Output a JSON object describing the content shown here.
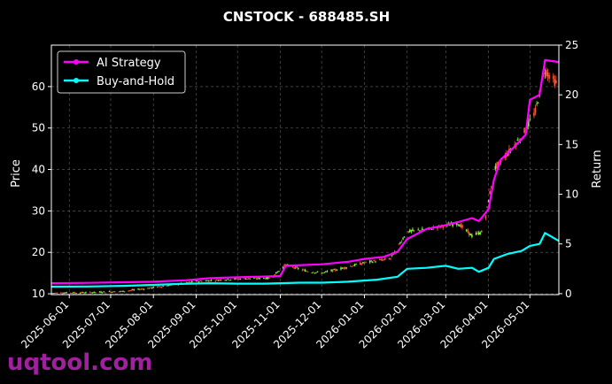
{
  "chart_data": {
    "type": "line",
    "title": "CNSTOCK - 688485.SH",
    "ylabel": "Price",
    "y2label": "Return",
    "ylim": [
      9.8,
      70
    ],
    "y2lim": [
      -0.1,
      25
    ],
    "grid": true,
    "legend_position": "top-left",
    "yticks": [
      10,
      20,
      30,
      40,
      50,
      60
    ],
    "y2ticks": [
      0,
      5,
      10,
      15,
      20,
      25
    ],
    "x_dates": [
      "2025-06-01",
      "2025-07-01",
      "2025-08-01",
      "2025-09-01",
      "2025-10-01",
      "2025-11-01",
      "2025-12-01",
      "2026-01-01",
      "2026-02-01",
      "2026-03-01",
      "2026-04-01",
      "2026-05-01"
    ],
    "xlim": [
      "2025-05-19",
      "2026-05-22"
    ],
    "series": [
      {
        "name": "AI Strategy",
        "color": "#ff00ff",
        "axis": "right",
        "points": [
          [
            "2025-05-19",
            1.05
          ],
          [
            "2025-06-15",
            1.08
          ],
          [
            "2025-07-10",
            1.15
          ],
          [
            "2025-08-01",
            1.2
          ],
          [
            "2025-08-25",
            1.35
          ],
          [
            "2025-09-10",
            1.55
          ],
          [
            "2025-10-01",
            1.65
          ],
          [
            "2025-10-20",
            1.72
          ],
          [
            "2025-11-01",
            1.78
          ],
          [
            "2025-11-05",
            2.8
          ],
          [
            "2025-12-01",
            2.95
          ],
          [
            "2025-12-20",
            3.2
          ],
          [
            "2026-01-01",
            3.5
          ],
          [
            "2026-01-15",
            3.7
          ],
          [
            "2026-01-25",
            4.2
          ],
          [
            "2026-02-01",
            5.5
          ],
          [
            "2026-02-15",
            6.5
          ],
          [
            "2026-03-01",
            6.9
          ],
          [
            "2026-03-10",
            7.2
          ],
          [
            "2026-03-20",
            7.6
          ],
          [
            "2026-03-25",
            7.3
          ],
          [
            "2026-04-01",
            8.5
          ],
          [
            "2026-04-05",
            11.5
          ],
          [
            "2026-04-10",
            13.5
          ],
          [
            "2026-04-20",
            14.8
          ],
          [
            "2026-04-28",
            16.0
          ],
          [
            "2026-05-01",
            19.5
          ],
          [
            "2026-05-08",
            20.0
          ],
          [
            "2026-05-12",
            23.5
          ],
          [
            "2026-05-22",
            23.3
          ]
        ]
      },
      {
        "name": "Buy-and-Hold",
        "color": "#00ffff",
        "axis": "right",
        "points": [
          [
            "2025-05-19",
            0.7
          ],
          [
            "2025-06-15",
            0.72
          ],
          [
            "2025-07-10",
            0.78
          ],
          [
            "2025-08-01",
            0.88
          ],
          [
            "2025-08-20",
            0.98
          ],
          [
            "2025-09-10",
            1.05
          ],
          [
            "2025-10-01",
            1.0
          ],
          [
            "2025-10-20",
            1.0
          ],
          [
            "2025-11-01",
            1.05
          ],
          [
            "2025-11-15",
            1.1
          ],
          [
            "2025-12-01",
            1.1
          ],
          [
            "2025-12-20",
            1.2
          ],
          [
            "2026-01-10",
            1.4
          ],
          [
            "2026-01-25",
            1.7
          ],
          [
            "2026-02-01",
            2.5
          ],
          [
            "2026-02-15",
            2.6
          ],
          [
            "2026-03-01",
            2.8
          ],
          [
            "2026-03-10",
            2.5
          ],
          [
            "2026-03-20",
            2.6
          ],
          [
            "2026-03-25",
            2.2
          ],
          [
            "2026-04-01",
            2.6
          ],
          [
            "2026-04-05",
            3.5
          ],
          [
            "2026-04-15",
            4.0
          ],
          [
            "2026-04-25",
            4.3
          ],
          [
            "2026-05-01",
            4.8
          ],
          [
            "2026-05-08",
            5.0
          ],
          [
            "2026-05-12",
            6.1
          ],
          [
            "2026-05-22",
            5.3
          ]
        ]
      }
    ],
    "price_points": [
      [
        "2025-05-19",
        10.2
      ],
      [
        "2025-06-15",
        10.3
      ],
      [
        "2025-07-10",
        10.6
      ],
      [
        "2025-08-01",
        11.5
      ],
      [
        "2025-09-01",
        13.0
      ],
      [
        "2025-10-01",
        13.6
      ],
      [
        "2025-10-25",
        13.8
      ],
      [
        "2025-11-05",
        17.0
      ],
      [
        "2025-11-20",
        15.5
      ],
      [
        "2025-12-01",
        15.0
      ],
      [
        "2025-12-20",
        16.5
      ],
      [
        "2026-01-01",
        17.5
      ],
      [
        "2026-01-20",
        18.5
      ],
      [
        "2026-02-01",
        25.0
      ],
      [
        "2026-02-15",
        25.5
      ],
      [
        "2026-03-01",
        26.5
      ],
      [
        "2026-03-10",
        27.0
      ],
      [
        "2026-03-20",
        24.0
      ],
      [
        "2026-03-28",
        25.0
      ],
      [
        "2026-04-05",
        40.0
      ],
      [
        "2026-04-15",
        44.0
      ],
      [
        "2026-04-25",
        48.0
      ],
      [
        "2026-05-05",
        54.0
      ],
      [
        "2026-05-12",
        64.0
      ],
      [
        "2026-05-22",
        60.0
      ]
    ]
  },
  "watermark": "uqtool.com"
}
